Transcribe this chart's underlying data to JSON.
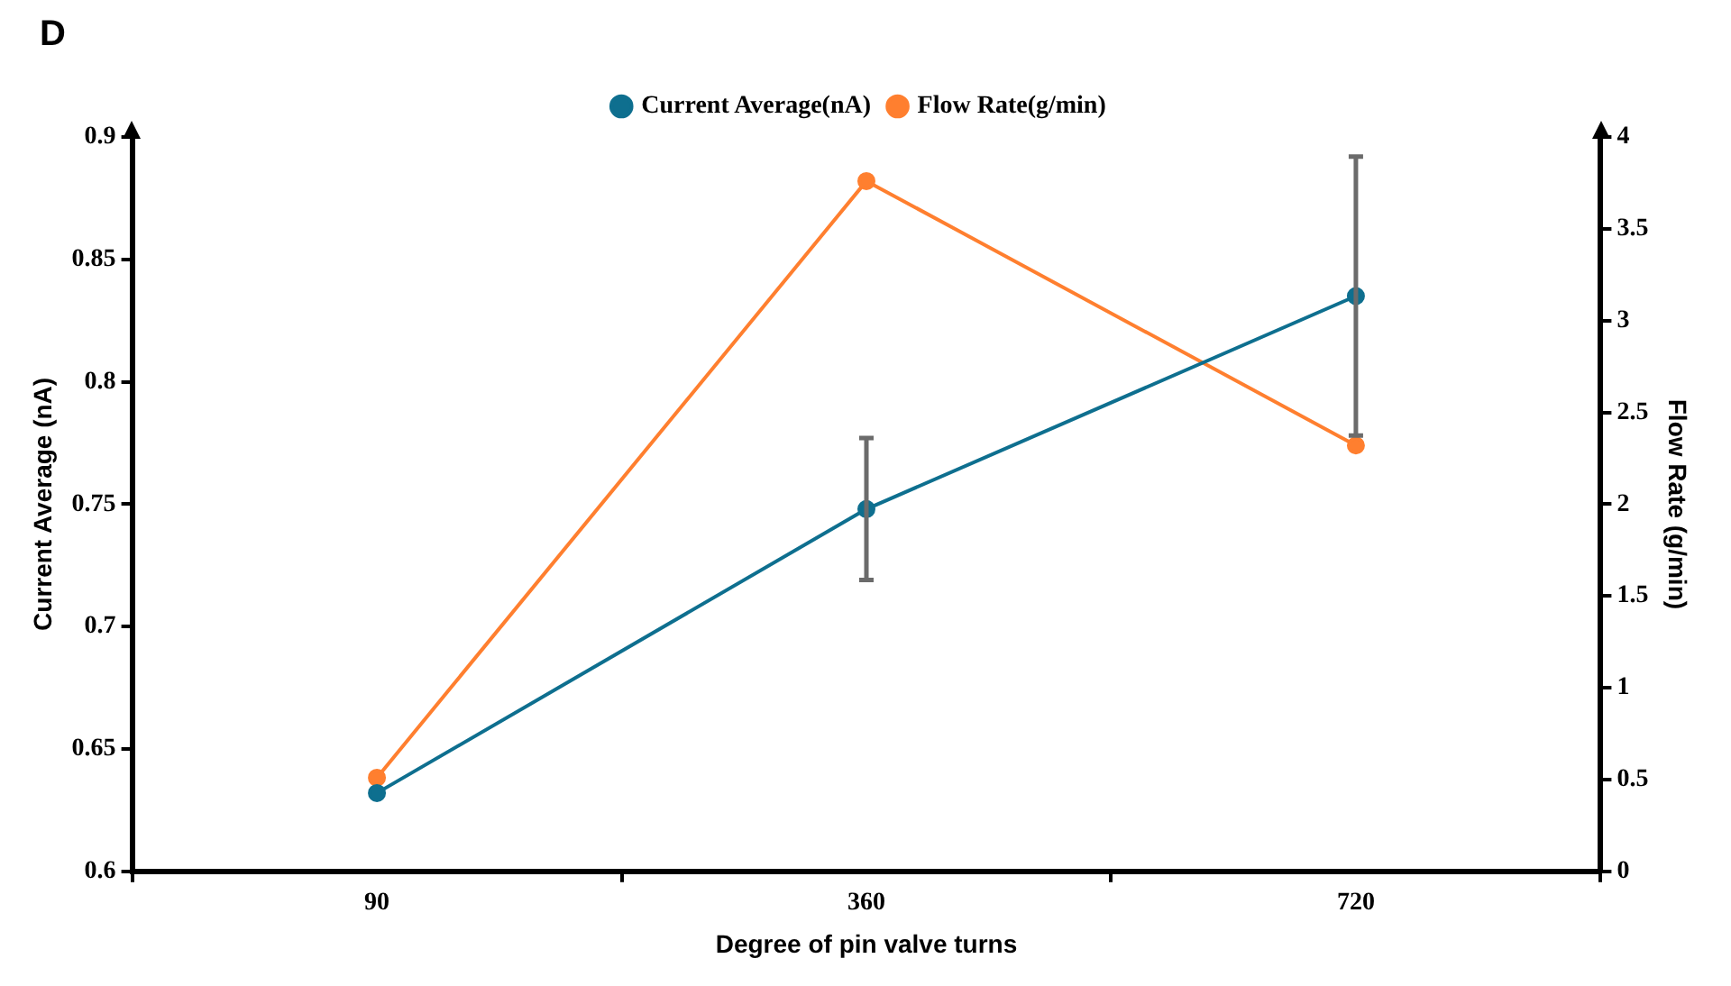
{
  "chart_data": {
    "type": "line",
    "annotations": [
      "D"
    ],
    "xlabel": "Degree of pin valve turns",
    "ylabel": "Current Average (nA)",
    "y2label": "Flow Rate (g/min)",
    "categories": [
      "90",
      "360",
      "720"
    ],
    "series": [
      {
        "name": "Current Average(nA)",
        "color": "#0e6f8f",
        "values": [
          0.632,
          0.748,
          0.835
        ],
        "errors": [
          null,
          0.029,
          0.057
        ]
      },
      {
        "name": "Flow Rate(g/min)",
        "color": "#ff7f2f",
        "values": [
          0.51,
          3.76,
          2.32
        ],
        "axis": "y2"
      }
    ],
    "ylim": [
      0.6,
      0.9
    ],
    "yticks": [
      0.6,
      0.65,
      0.7,
      0.75,
      0.8,
      0.85,
      0.9
    ],
    "y2lim": [
      0,
      4
    ],
    "y2ticks": [
      0,
      0.5,
      1,
      1.5,
      2,
      2.5,
      3,
      3.5,
      4
    ],
    "grid": false,
    "legend": "top",
    "marker": "circle",
    "line_style": "solid"
  }
}
